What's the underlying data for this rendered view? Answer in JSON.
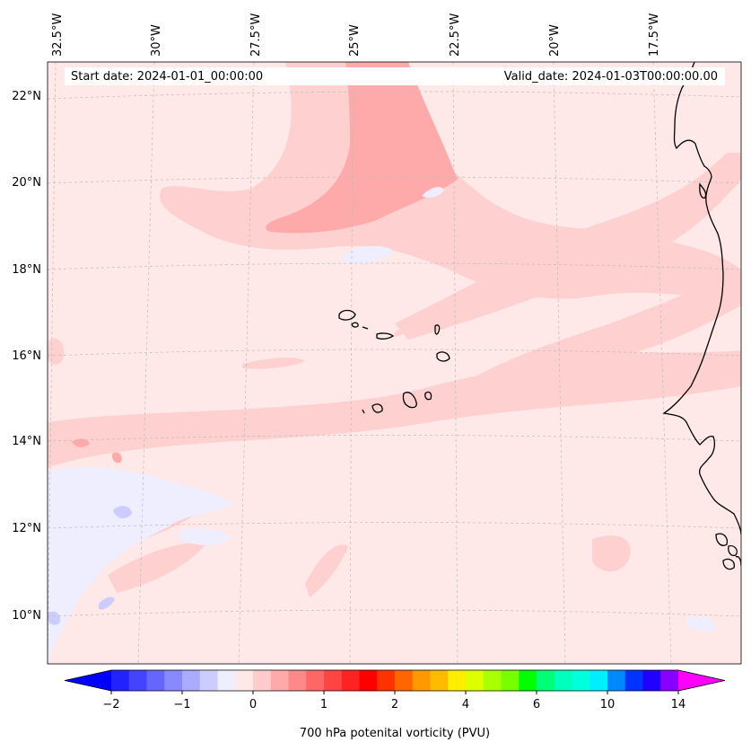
{
  "header": {
    "start_date": "Start date: 2024-01-01_00:00:00",
    "valid_date": "Valid_date: 2024-01-03T00:00:00.00"
  },
  "map": {
    "lon_labels": [
      "32.5°W",
      "30°W",
      "27.5°W",
      "25°W",
      "22.5°W",
      "20°W",
      "17.5°W"
    ],
    "lat_labels": [
      "22°N",
      "20°N",
      "18°N",
      "16°N",
      "14°N",
      "12°N",
      "10°N"
    ],
    "colors": {
      "background": "#ffe8e8",
      "light_pink": "#ffd0d0",
      "pink": "#ffaaaa",
      "light_blue": "#eeeeff",
      "blue": "#ccccff",
      "coast": "#000000",
      "grid": "#bbbbbb"
    }
  },
  "colorbar": {
    "title": "700 hPa potenital vorticity (PVU)",
    "tick_labels": [
      "−2",
      "−1",
      "0",
      "1",
      "2",
      "4",
      "6",
      "10",
      "14"
    ],
    "colors": [
      "#0000ff",
      "#2222ff",
      "#4444ff",
      "#6666ff",
      "#8888ff",
      "#aaaaff",
      "#ccccff",
      "#eeeeff",
      "#ffe8e8",
      "#ffcccc",
      "#ffaaaa",
      "#ff8888",
      "#ff6666",
      "#ff4444",
      "#ff2222",
      "#ff0000",
      "#ff3300",
      "#ff6600",
      "#ff9900",
      "#ffbb00",
      "#ffee00",
      "#ddff00",
      "#aaff00",
      "#77ff00",
      "#00ff00",
      "#00ff77",
      "#00ffbb",
      "#00ffdd",
      "#00eeff",
      "#0088ff",
      "#0033ff",
      "#2200ff",
      "#8800ff",
      "#ff00ff"
    ]
  }
}
